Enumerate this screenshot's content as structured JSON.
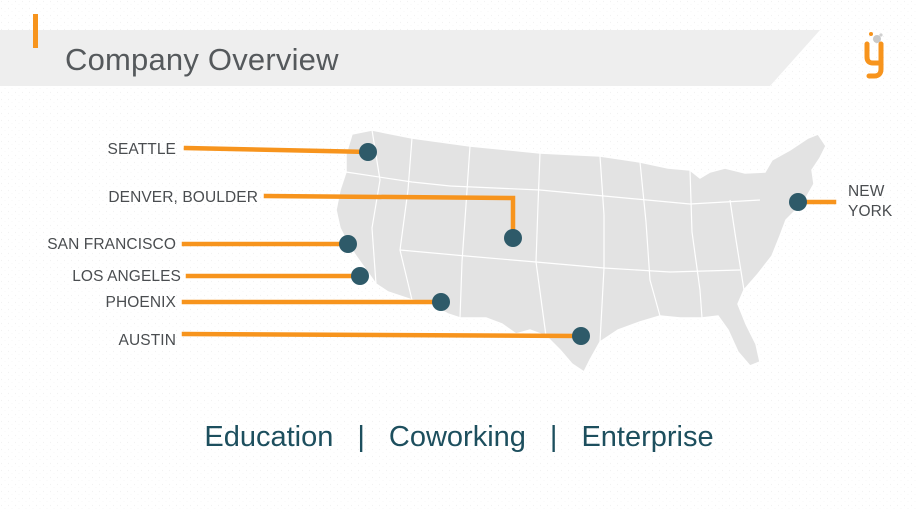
{
  "slide": {
    "title": "Company Overview",
    "tagline": {
      "items": [
        "Education",
        "Coworking",
        "Enterprise"
      ],
      "separator": "|"
    }
  },
  "map": {
    "region": "United States",
    "cities": [
      {
        "name": "SEATTLE"
      },
      {
        "name": "DENVER, BOULDER"
      },
      {
        "name": "SAN FRANCISCO"
      },
      {
        "name": "LOS ANGELES"
      },
      {
        "name": "PHOENIX"
      },
      {
        "name": "AUSTIN"
      }
    ],
    "new_york": {
      "line1": "NEW",
      "line2": "YORK"
    }
  },
  "colors": {
    "accent": "#f7941d",
    "marker": "#2e5a69",
    "title_text": "#55595c",
    "tagline_text": "#1d4f5e",
    "map_fill": "#e3e3e3",
    "header_band": "#eeeeee"
  },
  "icons": {
    "logo": "orange-g-logo-icon",
    "marker": "map-pin-dot-icon"
  }
}
